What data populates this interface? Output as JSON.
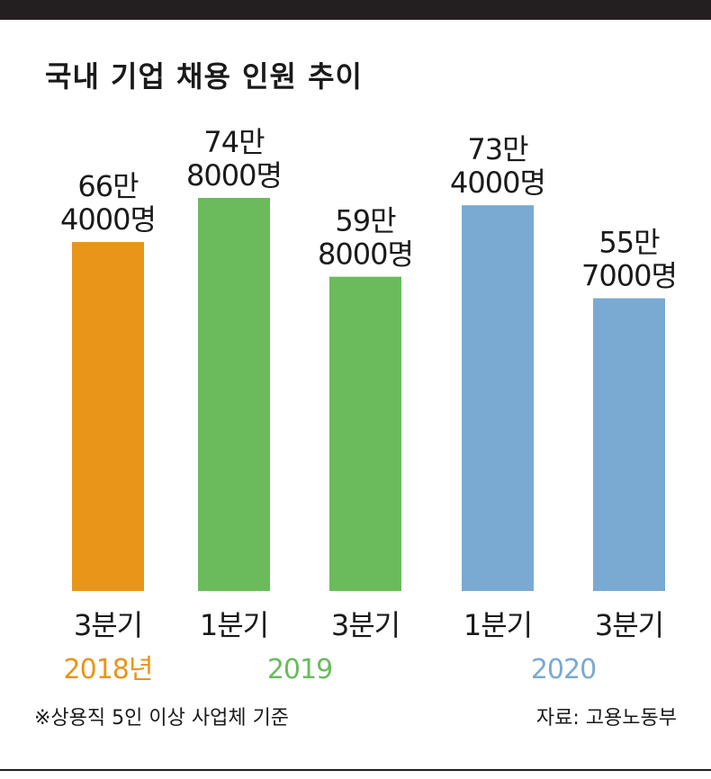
{
  "title": "국내 기업 채용 인원 추이",
  "footnote": "※상용직 5인 이상 사업체 기준",
  "source": "자료: 고용노동부",
  "colors": {
    "orange": "#e8951a",
    "green": "#6bbb5d",
    "blue": "#7aa9d2",
    "background": "#ffffff",
    "rule": "#231f20"
  },
  "chart_data": {
    "type": "bar",
    "categories": [
      "3분기",
      "1분기",
      "3분기",
      "1분기",
      "3분기"
    ],
    "values": [
      664000,
      748000,
      598000,
      734000,
      557000
    ],
    "value_labels": [
      [
        "66만",
        "4000명"
      ],
      [
        "74만",
        "8000명"
      ],
      [
        "59만",
        "8000명"
      ],
      [
        "73만",
        "4000명"
      ],
      [
        "55만",
        "7000명"
      ]
    ],
    "bar_colors": [
      "#e8951a",
      "#6bbb5d",
      "#6bbb5d",
      "#7aa9d2",
      "#7aa9d2"
    ],
    "year_groups": [
      {
        "label": "2018년",
        "color": "#e8951a",
        "bars": [
          0
        ]
      },
      {
        "label": "2019",
        "color": "#6bbb5d",
        "bars": [
          1,
          2
        ]
      },
      {
        "label": "2020",
        "color": "#7aa9d2",
        "bars": [
          3,
          4
        ]
      }
    ],
    "ylim": [
      0,
      748000
    ],
    "grid": false
  }
}
